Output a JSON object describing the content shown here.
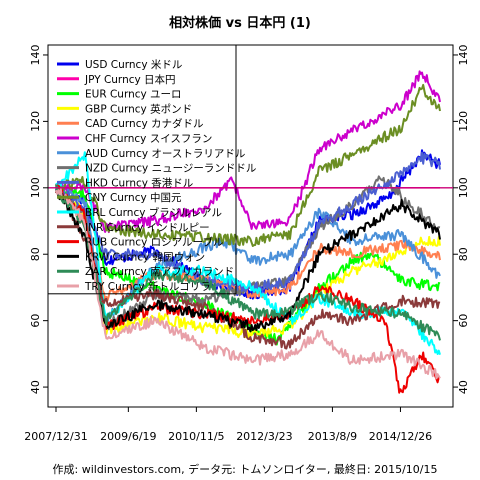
{
  "chart_data": {
    "type": "line",
    "title": "相対株価 vs 日本円 (1)",
    "caption": "作成: wildinvestors.com, データ元: トムソンロイター, 最終日: 2015/10/15",
    "x_ticks": [
      "2007/12/31",
      "2009/6/19",
      "2010/11/5",
      "2012/3/23",
      "2013/8/9",
      "2014/12/26"
    ],
    "xlim": [
      "2007/12/31",
      "2015/10/15"
    ],
    "ylim": [
      34,
      143
    ],
    "y_ticks": [
      40,
      60,
      80,
      100,
      120,
      140
    ],
    "reference_line": 100,
    "legend_placement": "top-left",
    "series": [
      {
        "name": "USD Curncy 米ドル",
        "color": "#0000ee",
        "dates": [
          "2007/12/31",
          "2008/8/1",
          "2009/1/1",
          "2010/1/1",
          "2011/1/1",
          "2012/1/1",
          "2012/10/1",
          "2013/5/1",
          "2014/1/1",
          "2014/10/1",
          "2015/6/1",
          "2015/10/15"
        ],
        "values": [
          100,
          96,
          78,
          81,
          72,
          68,
          70,
          90,
          92,
          97,
          110,
          107
        ]
      },
      {
        "name": "JPY Curncy 日本円",
        "color": "#ff00aa",
        "dates": [
          "2007/12/31",
          "2015/10/15"
        ],
        "values": [
          100,
          100
        ]
      },
      {
        "name": "EUR Curncy ユーロ",
        "color": "#00ff00",
        "dates": [
          "2007/12/31",
          "2008/8/1",
          "2009/1/1",
          "2010/1/1",
          "2011/1/1",
          "2012/1/1",
          "2012/7/1",
          "2013/5/1",
          "2014/1/1",
          "2014/6/1",
          "2015/1/1",
          "2015/10/15"
        ],
        "values": [
          100,
          98,
          75,
          70,
          65,
          57,
          54,
          70,
          78,
          80,
          72,
          70
        ]
      },
      {
        "name": "GBP Curncy 英ポンド",
        "color": "#ffff00",
        "dates": [
          "2007/12/31",
          "2008/8/1",
          "2009/1/1",
          "2010/1/1",
          "2011/1/1",
          "2012/1/1",
          "2012/10/1",
          "2013/5/1",
          "2014/1/1",
          "2014/8/1",
          "2015/6/1",
          "2015/10/15"
        ],
        "values": [
          100,
          92,
          57,
          61,
          58,
          56,
          58,
          68,
          75,
          78,
          84,
          84
        ]
      },
      {
        "name": "CAD Curncy カナダドル",
        "color": "#ff7f50",
        "dates": [
          "2007/12/31",
          "2008/8/1",
          "2009/1/1",
          "2010/1/1",
          "2011/1/1",
          "2012/1/1",
          "2012/10/1",
          "2013/5/1",
          "2014/1/1",
          "2015/1/1",
          "2015/10/15"
        ],
        "values": [
          100,
          90,
          67,
          74,
          73,
          68,
          70,
          82,
          80,
          83,
          79
        ]
      },
      {
        "name": "CHF Curncy スイスフラン",
        "color": "#cc00cc",
        "dates": [
          "2007/12/31",
          "2008/8/1",
          "2009/1/1",
          "2010/1/1",
          "2011/1/1",
          "2011/8/1",
          "2012/1/1",
          "2012/10/1",
          "2013/5/1",
          "2014/1/1",
          "2015/1/1",
          "2015/6/1",
          "2015/10/15"
        ],
        "values": [
          100,
          100,
          88,
          90,
          94,
          102,
          88,
          90,
          112,
          117,
          125,
          135,
          126
        ]
      },
      {
        "name": "AUD Curncy オーストラリアドル",
        "color": "#4a90d9",
        "dates": [
          "2007/12/31",
          "2008/8/1",
          "2009/1/1",
          "2010/1/1",
          "2011/1/1",
          "2011/6/1",
          "2012/1/1",
          "2012/10/1",
          "2013/5/1",
          "2014/1/1",
          "2015/1/1",
          "2015/10/15"
        ],
        "values": [
          100,
          96,
          60,
          76,
          82,
          84,
          78,
          80,
          93,
          84,
          86,
          73
        ]
      },
      {
        "name": "NZD Curncy ニュージーランドドル",
        "color": "#707070",
        "dates": [
          "2007/12/31",
          "2008/8/1",
          "2009/1/1",
          "2010/1/1",
          "2011/1/1",
          "2012/1/1",
          "2012/10/1",
          "2013/5/1",
          "2014/1/1",
          "2014/8/1",
          "2015/6/1",
          "2015/10/15"
        ],
        "values": [
          100,
          92,
          58,
          68,
          66,
          70,
          72,
          88,
          95,
          103,
          92,
          87
        ]
      },
      {
        "name": "HKD Curncy 香港ドル",
        "color": "#4b5fd1",
        "dates": [
          "2007/12/31",
          "2008/8/1",
          "2009/1/1",
          "2010/1/1",
          "2011/1/1",
          "2012/1/1",
          "2012/10/1",
          "2013/5/1",
          "2014/1/1",
          "2015/1/1",
          "2015/6/1",
          "2015/10/15"
        ],
        "values": [
          100,
          94,
          80,
          80,
          72,
          70,
          72,
          89,
          95,
          104,
          109,
          107
        ]
      },
      {
        "name": "CNY Curncy 中国元",
        "color": "#6b8e23",
        "dates": [
          "2007/12/31",
          "2008/8/1",
          "2009/1/1",
          "2010/1/1",
          "2011/1/1",
          "2012/1/1",
          "2012/10/1",
          "2013/5/1",
          "2014/1/1",
          "2015/1/1",
          "2015/6/1",
          "2015/10/15"
        ],
        "values": [
          100,
          102,
          88,
          86,
          85,
          84,
          86,
          105,
          110,
          118,
          130,
          124
        ]
      },
      {
        "name": "BRL Curncy ブラジルレアル",
        "color": "#00ffff",
        "dates": [
          "2007/12/31",
          "2008/8/1",
          "2009/1/1",
          "2010/1/1",
          "2011/1/1",
          "2012/1/1",
          "2012/10/1",
          "2013/5/1",
          "2014/1/1",
          "2015/1/1",
          "2015/10/15"
        ],
        "values": [
          100,
          110,
          60,
          75,
          75,
          70,
          60,
          67,
          62,
          63,
          50
        ]
      },
      {
        "name": "INR Curncy インドルピー",
        "color": "#8b3a3a",
        "dates": [
          "2007/12/31",
          "2008/8/1",
          "2009/1/1",
          "2010/1/1",
          "2011/1/1",
          "2012/1/1",
          "2012/10/1",
          "2013/5/1",
          "2014/1/1",
          "2015/1/1",
          "2015/10/15"
        ],
        "values": [
          100,
          85,
          65,
          68,
          64,
          55,
          53,
          62,
          60,
          66,
          65
        ]
      },
      {
        "name": "RUB Curncy ロシアルーブル",
        "color": "#ee0000",
        "dates": [
          "2007/12/31",
          "2008/8/1",
          "2009/1/1",
          "2010/1/1",
          "2011/1/1",
          "2012/1/1",
          "2012/10/1",
          "2013/5/1",
          "2014/1/1",
          "2014/9/1",
          "2014/12/26",
          "2015/6/1",
          "2015/10/15"
        ],
        "values": [
          100,
          92,
          58,
          64,
          62,
          60,
          62,
          70,
          66,
          60,
          38,
          50,
          42
        ]
      },
      {
        "name": "KRW Curncy 韓国ウォン",
        "color": "#000000",
        "dates": [
          "2007/12/31",
          "2008/8/1",
          "2009/1/1",
          "2010/1/1",
          "2011/1/1",
          "2012/1/1",
          "2012/10/1",
          "2013/5/1",
          "2014/1/1",
          "2015/1/1",
          "2015/6/1",
          "2015/10/15"
        ],
        "values": [
          100,
          85,
          58,
          65,
          62,
          58,
          62,
          80,
          86,
          95,
          90,
          86
        ]
      },
      {
        "name": "ZAR Curncy 南アフリカランド",
        "color": "#2e8b57",
        "dates": [
          "2007/12/31",
          "2008/8/1",
          "2009/1/1",
          "2010/1/1",
          "2011/1/1",
          "2012/1/1",
          "2012/10/1",
          "2013/5/1",
          "2014/1/1",
          "2015/1/1",
          "2015/10/15"
        ],
        "values": [
          100,
          88,
          60,
          74,
          72,
          62,
          63,
          68,
          64,
          62,
          55
        ]
      },
      {
        "name": "TRY Curncy 新トルコリラ",
        "color": "#e8a0a8",
        "dates": [
          "2007/12/31",
          "2008/8/1",
          "2009/1/1",
          "2010/1/1",
          "2011/1/1",
          "2012/1/1",
          "2012/10/1",
          "2013/5/1",
          "2014/1/1",
          "2015/1/1",
          "2015/10/15"
        ],
        "values": [
          100,
          90,
          55,
          60,
          52,
          48,
          50,
          56,
          48,
          50,
          43
        ]
      }
    ]
  }
}
